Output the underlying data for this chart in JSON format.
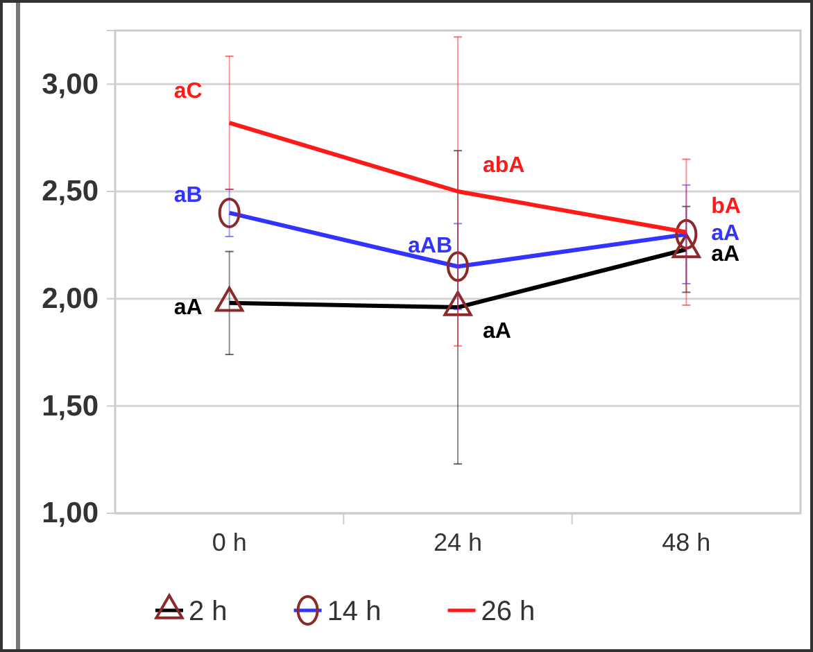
{
  "chart_data": {
    "type": "line",
    "categories": [
      "0 h",
      "24 h",
      "48 h"
    ],
    "series": [
      {
        "name": "2 h",
        "color": "#000000",
        "marker": "triangle",
        "values": [
          1.98,
          1.96,
          2.23
        ],
        "errors": [
          0.24,
          0.73,
          0.2
        ]
      },
      {
        "name": "14 h",
        "color": "#3333ff",
        "marker": "circle",
        "values": [
          2.4,
          2.15,
          2.3
        ],
        "errors": [
          0.11,
          0.2,
          0.23
        ]
      },
      {
        "name": "26 h",
        "color": "#ff1a1a",
        "marker": "none",
        "values": [
          2.82,
          2.5,
          2.31
        ],
        "errors": [
          0.31,
          0.72,
          0.34
        ]
      }
    ],
    "ylim": [
      1,
      3.25
    ],
    "yticks": [
      {
        "value": 1,
        "label": "1,00"
      },
      {
        "value": 1.5,
        "label": "1,50"
      },
      {
        "value": 2,
        "label": "2,00"
      },
      {
        "value": 2.5,
        "label": "2,50"
      },
      {
        "value": 3,
        "label": "3,00"
      }
    ],
    "grid": "y",
    "legend": "bottom",
    "annotations": [
      {
        "text": "aA",
        "x": "0 h",
        "y": 1.98
      },
      {
        "text": "aA",
        "x": "24 h",
        "y": 1.96
      },
      {
        "text": "aA",
        "x": "48 h",
        "y": 2.23
      },
      {
        "text": "aB",
        "x": "0 h",
        "y": 2.4
      },
      {
        "text": "aAB",
        "x": "24 h",
        "y": 2.15
      },
      {
        "text": "aA",
        "x": "48 h",
        "y": 2.3
      },
      {
        "text": "aC",
        "x": "0 h",
        "y": 2.82
      },
      {
        "text": "abA",
        "x": "24 h",
        "y": 2.5
      },
      {
        "text": "bA",
        "x": "48 h",
        "y": 2.31
      }
    ]
  }
}
